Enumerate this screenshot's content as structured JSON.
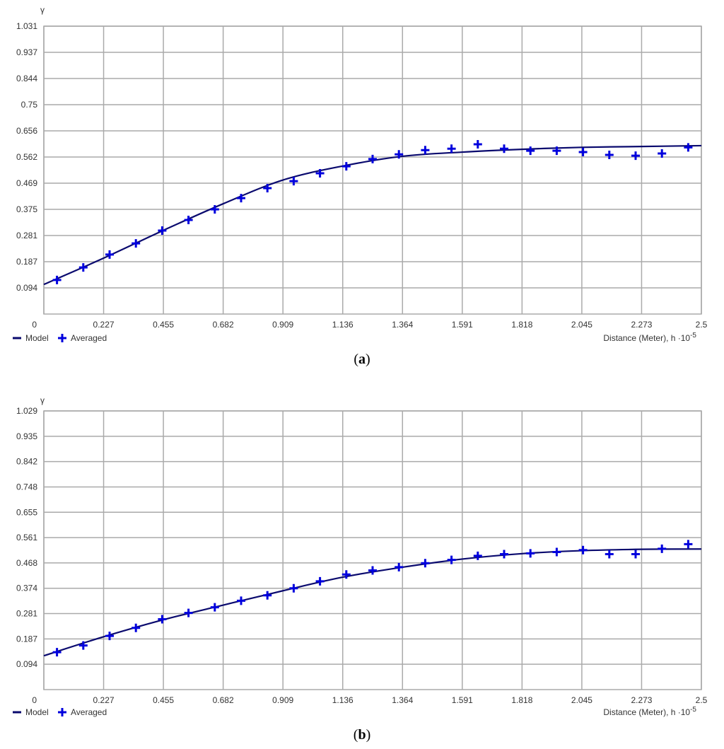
{
  "chart_data": [
    {
      "type": "line",
      "panel_label": "a",
      "ylabel": "γ",
      "xlabel_main": "Distance (Meter), h ·10",
      "xlabel_exp": "-5",
      "xlim": [
        0,
        2.5
      ],
      "ylim": [
        0,
        1.031
      ],
      "xticks": [
        "0",
        "0.227",
        "0.455",
        "0.682",
        "0.909",
        "1.136",
        "1.364",
        "1.591",
        "1.818",
        "2.045",
        "2.273",
        "2.5"
      ],
      "yticks": [
        "1.031",
        "0.937",
        "0.844",
        "0.75",
        "0.656",
        "0.562",
        "0.469",
        "0.375",
        "0.281",
        "0.187",
        "0.094"
      ],
      "grid": true,
      "legend_placement": "bottom-left",
      "series": [
        {
          "name": "Model",
          "kind": "line",
          "color": "#0a0a6e",
          "x": [
            0,
            0.227,
            0.455,
            0.682,
            0.909,
            1.136,
            1.364,
            1.591,
            1.818,
            2.045,
            2.273,
            2.5
          ],
          "y": [
            0.106,
            0.2,
            0.3,
            0.395,
            0.48,
            0.53,
            0.565,
            0.58,
            0.59,
            0.597,
            0.6,
            0.603
          ]
        },
        {
          "name": "Averaged",
          "kind": "scatter",
          "marker": "plus",
          "color": "#0000dd",
          "x": [
            0.05,
            0.15,
            0.25,
            0.35,
            0.45,
            0.55,
            0.65,
            0.75,
            0.85,
            0.95,
            1.05,
            1.15,
            1.25,
            1.35,
            1.45,
            1.55,
            1.65,
            1.75,
            1.85,
            1.95,
            2.05,
            2.15,
            2.25,
            2.35,
            2.45
          ],
          "y": [
            0.122,
            0.167,
            0.213,
            0.253,
            0.299,
            0.337,
            0.375,
            0.415,
            0.451,
            0.476,
            0.504,
            0.529,
            0.555,
            0.572,
            0.587,
            0.592,
            0.608,
            0.592,
            0.585,
            0.585,
            0.58,
            0.57,
            0.567,
            0.575,
            0.597
          ]
        }
      ]
    },
    {
      "type": "line",
      "panel_label": "b",
      "ylabel": "γ",
      "xlabel_main": "Distance (Meter), h ·10",
      "xlabel_exp": "-5",
      "xlim": [
        0,
        2.5
      ],
      "ylim": [
        0,
        1.029
      ],
      "xticks": [
        "0",
        "0.227",
        "0.455",
        "0.682",
        "0.909",
        "1.136",
        "1.364",
        "1.591",
        "1.818",
        "2.045",
        "2.273",
        "2.5"
      ],
      "yticks": [
        "1.029",
        "0.935",
        "0.842",
        "0.748",
        "0.655",
        "0.561",
        "0.468",
        "0.374",
        "0.281",
        "0.187",
        "0.094"
      ],
      "grid": true,
      "legend_placement": "bottom-left",
      "series": [
        {
          "name": "Model",
          "kind": "line",
          "color": "#0a0a6e",
          "x": [
            0,
            0.227,
            0.455,
            0.682,
            0.909,
            1.136,
            1.364,
            1.591,
            1.818,
            2.045,
            2.273,
            2.5
          ],
          "y": [
            0.125,
            0.195,
            0.258,
            0.312,
            0.365,
            0.415,
            0.452,
            0.482,
            0.502,
            0.513,
            0.518,
            0.519
          ]
        },
        {
          "name": "Averaged",
          "kind": "scatter",
          "marker": "plus",
          "color": "#0000dd",
          "x": [
            0.05,
            0.15,
            0.25,
            0.35,
            0.45,
            0.55,
            0.65,
            0.75,
            0.85,
            0.95,
            1.05,
            1.15,
            1.25,
            1.35,
            1.45,
            1.55,
            1.65,
            1.75,
            1.85,
            1.95,
            2.05,
            2.15,
            2.25,
            2.35,
            2.45
          ],
          "y": [
            0.138,
            0.163,
            0.198,
            0.228,
            0.26,
            0.283,
            0.304,
            0.328,
            0.348,
            0.374,
            0.4,
            0.425,
            0.44,
            0.452,
            0.467,
            0.479,
            0.494,
            0.5,
            0.503,
            0.508,
            0.515,
            0.5,
            0.5,
            0.52,
            0.537
          ]
        }
      ]
    }
  ]
}
